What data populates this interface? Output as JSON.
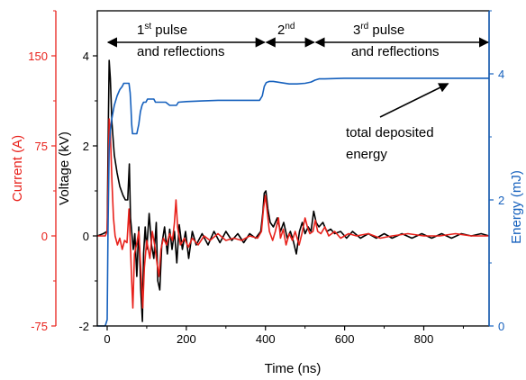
{
  "chart_data": {
    "type": "line",
    "xlabel": "Time (ns)",
    "x_ticks": [
      0,
      200,
      400,
      600,
      800
    ],
    "xlim": [
      -25,
      965
    ],
    "axes": {
      "current": {
        "label": "Current (A)",
        "color": "#e8211b",
        "ylim": [
          -75,
          187.5
        ],
        "ticks": [
          -75,
          0,
          75,
          150
        ]
      },
      "voltage": {
        "label": "Voltage (kV)",
        "color": "#000000",
        "ylim": [
          -2,
          5
        ],
        "ticks": [
          -2,
          0,
          2,
          4
        ]
      },
      "energy": {
        "label": "Energy (mJ)",
        "color": "#1560bd",
        "ylim": [
          0,
          5
        ],
        "ticks": [
          0,
          2,
          4
        ]
      }
    },
    "annotations": {
      "pulse1_line1": "1",
      "pulse1_sup": "st",
      "pulse1_line1_rest": " pulse",
      "pulse1_line2": "and reflections",
      "pulse2": "2",
      "pulse2_sup": "nd",
      "pulse3_line1": "3",
      "pulse3_sup": "rd",
      "pulse3_line1_rest": " pulse",
      "pulse3_line2": "and reflections",
      "energy_line1": "total deposited",
      "energy_line2": "energy"
    },
    "annotation_ranges": {
      "pulse1": [
        0,
        400
      ],
      "pulse2": [
        400,
        525
      ],
      "pulse3": [
        525,
        965
      ],
      "energy_arrow_x": 850
    },
    "series": [
      {
        "axis": "voltage",
        "color": "#000000",
        "points": [
          [
            -25,
            0
          ],
          [
            -10,
            0.05
          ],
          [
            0,
            0.1
          ],
          [
            3,
            2.5
          ],
          [
            5,
            3.9
          ],
          [
            8,
            3.5
          ],
          [
            12,
            2.5
          ],
          [
            18,
            1.8
          ],
          [
            25,
            1.4
          ],
          [
            32,
            1.1
          ],
          [
            40,
            0.9
          ],
          [
            46,
            0.8
          ],
          [
            52,
            0.8
          ],
          [
            56,
            1.6
          ],
          [
            59,
            0.4
          ],
          [
            62,
            0.1
          ],
          [
            66,
            -0.3
          ],
          [
            70,
            0.05
          ],
          [
            75,
            -0.9
          ],
          [
            80,
            0.2
          ],
          [
            85,
            -1.2
          ],
          [
            89,
            -1.9
          ],
          [
            92,
            -0.4
          ],
          [
            96,
            0.2
          ],
          [
            100,
            -0.3
          ],
          [
            106,
            0.5
          ],
          [
            112,
            -0.2
          ],
          [
            118,
            -0.5
          ],
          [
            124,
            0.3
          ],
          [
            128,
            -1.0
          ],
          [
            133,
            -1.2
          ],
          [
            138,
            -0.2
          ],
          [
            145,
            0.2
          ],
          [
            152,
            -0.4
          ],
          [
            158,
            0.15
          ],
          [
            164,
            -0.3
          ],
          [
            170,
            0.1
          ],
          [
            176,
            -0.6
          ],
          [
            182,
            0.25
          ],
          [
            190,
            -0.3
          ],
          [
            198,
            0.1
          ],
          [
            206,
            -0.5
          ],
          [
            215,
            0.1
          ],
          [
            225,
            -0.2
          ],
          [
            240,
            0.05
          ],
          [
            255,
            -0.2
          ],
          [
            270,
            0.1
          ],
          [
            285,
            -0.15
          ],
          [
            300,
            0.1
          ],
          [
            315,
            -0.1
          ],
          [
            330,
            0.05
          ],
          [
            345,
            -0.15
          ],
          [
            360,
            0.05
          ],
          [
            375,
            -0.05
          ],
          [
            388,
            0.1
          ],
          [
            393,
            0.5
          ],
          [
            397,
            0.95
          ],
          [
            401,
            1.0
          ],
          [
            406,
            0.6
          ],
          [
            412,
            0.3
          ],
          [
            420,
            0.2
          ],
          [
            430,
            0.4
          ],
          [
            438,
            0.1
          ],
          [
            446,
            0.3
          ],
          [
            455,
            -0.05
          ],
          [
            463,
            0.1
          ],
          [
            470,
            -0.1
          ],
          [
            478,
            -0.4
          ],
          [
            486,
            0.1
          ],
          [
            493,
            0.3
          ],
          [
            500,
            0.05
          ],
          [
            508,
            0.2
          ],
          [
            515,
            0.1
          ],
          [
            522,
            0.55
          ],
          [
            528,
            0.3
          ],
          [
            535,
            0.2
          ],
          [
            545,
            0.3
          ],
          [
            555,
            0.1
          ],
          [
            565,
            0.15
          ],
          [
            575,
            0.05
          ],
          [
            590,
            0.1
          ],
          [
            605,
            -0.05
          ],
          [
            620,
            0.1
          ],
          [
            640,
            -0.05
          ],
          [
            660,
            0.05
          ],
          [
            680,
            -0.05
          ],
          [
            700,
            0.05
          ],
          [
            720,
            -0.05
          ],
          [
            745,
            0.05
          ],
          [
            770,
            -0.05
          ],
          [
            795,
            0.05
          ],
          [
            820,
            -0.05
          ],
          [
            845,
            0.05
          ],
          [
            870,
            -0.05
          ],
          [
            895,
            0.05
          ],
          [
            920,
            0
          ],
          [
            945,
            0.05
          ],
          [
            965,
            0
          ]
        ]
      },
      {
        "axis": "voltage",
        "color": "#e8211b",
        "points": [
          [
            -25,
            0
          ],
          [
            -5,
            0
          ],
          [
            0,
            0.1
          ],
          [
            3,
            1.4
          ],
          [
            5,
            2.6
          ],
          [
            8,
            2.3
          ],
          [
            12,
            1.2
          ],
          [
            16,
            0.4
          ],
          [
            20,
            0
          ],
          [
            26,
            -0.2
          ],
          [
            32,
            -0.05
          ],
          [
            38,
            -0.3
          ],
          [
            44,
            -0.1
          ],
          [
            50,
            -0.15
          ],
          [
            55,
            0.6
          ],
          [
            58,
            -0.05
          ],
          [
            62,
            -1.0
          ],
          [
            65,
            -1.6
          ],
          [
            69,
            -0.4
          ],
          [
            74,
            -0.2
          ],
          [
            80,
            0.1
          ],
          [
            86,
            -0.9
          ],
          [
            90,
            -1.6
          ],
          [
            94,
            -0.7
          ],
          [
            100,
            -0.1
          ],
          [
            108,
            -0.5
          ],
          [
            114,
            0.1
          ],
          [
            120,
            -0.2
          ],
          [
            126,
            -0.6
          ],
          [
            131,
            -0.9
          ],
          [
            136,
            -0.3
          ],
          [
            142,
            -0.05
          ],
          [
            150,
            -0.2
          ],
          [
            158,
            0.05
          ],
          [
            165,
            -0.1
          ],
          [
            170,
            0.3
          ],
          [
            174,
            0.8
          ],
          [
            178,
            0.2
          ],
          [
            185,
            -0.2
          ],
          [
            195,
            -0.05
          ],
          [
            205,
            -0.25
          ],
          [
            215,
            -0.05
          ],
          [
            230,
            -0.2
          ],
          [
            245,
            0
          ],
          [
            260,
            -0.1
          ],
          [
            280,
            0.05
          ],
          [
            300,
            -0.1
          ],
          [
            320,
            -0.05
          ],
          [
            340,
            -0.1
          ],
          [
            360,
            0
          ],
          [
            380,
            -0.05
          ],
          [
            390,
            0.1
          ],
          [
            395,
            0.6
          ],
          [
            400,
            0.9
          ],
          [
            405,
            0.5
          ],
          [
            410,
            0.1
          ],
          [
            418,
            -0.1
          ],
          [
            425,
            0.1
          ],
          [
            433,
            0.4
          ],
          [
            438,
            -0.05
          ],
          [
            445,
            0.15
          ],
          [
            452,
            -0.2
          ],
          [
            460,
            0.05
          ],
          [
            468,
            -0.1
          ],
          [
            475,
            0.1
          ],
          [
            485,
            -0.2
          ],
          [
            492,
            0.05
          ],
          [
            500,
            0.4
          ],
          [
            506,
            0.2
          ],
          [
            512,
            0.05
          ],
          [
            520,
            0.1
          ],
          [
            526,
            0.35
          ],
          [
            532,
            0.1
          ],
          [
            540,
            0.05
          ],
          [
            550,
            0.2
          ],
          [
            560,
            0
          ],
          [
            575,
            0.1
          ],
          [
            590,
            -0.05
          ],
          [
            610,
            0.05
          ],
          [
            630,
            0
          ],
          [
            660,
            0.05
          ],
          [
            690,
            -0.05
          ],
          [
            720,
            0
          ],
          [
            760,
            0.05
          ],
          [
            800,
            0
          ],
          [
            840,
            0
          ],
          [
            880,
            0.05
          ],
          [
            920,
            0
          ],
          [
            965,
            0
          ]
        ]
      },
      {
        "axis": "energy",
        "color": "#1560bd",
        "points": [
          [
            -25,
            0
          ],
          [
            -5,
            0
          ],
          [
            0,
            0.1
          ],
          [
            2,
            1.5
          ],
          [
            5,
            2.8
          ],
          [
            8,
            3.1
          ],
          [
            12,
            3.3
          ],
          [
            18,
            3.5
          ],
          [
            25,
            3.65
          ],
          [
            32,
            3.75
          ],
          [
            38,
            3.8
          ],
          [
            42,
            3.85
          ],
          [
            55,
            3.85
          ],
          [
            58,
            3.7
          ],
          [
            60,
            3.5
          ],
          [
            62,
            3.2
          ],
          [
            64,
            3.05
          ],
          [
            75,
            3.05
          ],
          [
            80,
            3.2
          ],
          [
            84,
            3.4
          ],
          [
            88,
            3.5
          ],
          [
            92,
            3.55
          ],
          [
            98,
            3.55
          ],
          [
            102,
            3.6
          ],
          [
            118,
            3.6
          ],
          [
            122,
            3.55
          ],
          [
            128,
            3.55
          ],
          [
            138,
            3.55
          ],
          [
            148,
            3.55
          ],
          [
            158,
            3.5
          ],
          [
            168,
            3.5
          ],
          [
            175,
            3.5
          ],
          [
            180,
            3.55
          ],
          [
            200,
            3.56
          ],
          [
            240,
            3.57
          ],
          [
            280,
            3.58
          ],
          [
            320,
            3.58
          ],
          [
            360,
            3.58
          ],
          [
            385,
            3.58
          ],
          [
            392,
            3.65
          ],
          [
            397,
            3.8
          ],
          [
            402,
            3.86
          ],
          [
            410,
            3.88
          ],
          [
            420,
            3.88
          ],
          [
            440,
            3.86
          ],
          [
            460,
            3.84
          ],
          [
            480,
            3.84
          ],
          [
            500,
            3.85
          ],
          [
            515,
            3.87
          ],
          [
            525,
            3.9
          ],
          [
            535,
            3.92
          ],
          [
            550,
            3.92
          ],
          [
            600,
            3.93
          ],
          [
            650,
            3.93
          ],
          [
            700,
            3.93
          ],
          [
            750,
            3.93
          ],
          [
            800,
            3.93
          ],
          [
            850,
            3.93
          ],
          [
            900,
            3.93
          ],
          [
            965,
            3.93
          ]
        ]
      }
    ]
  }
}
